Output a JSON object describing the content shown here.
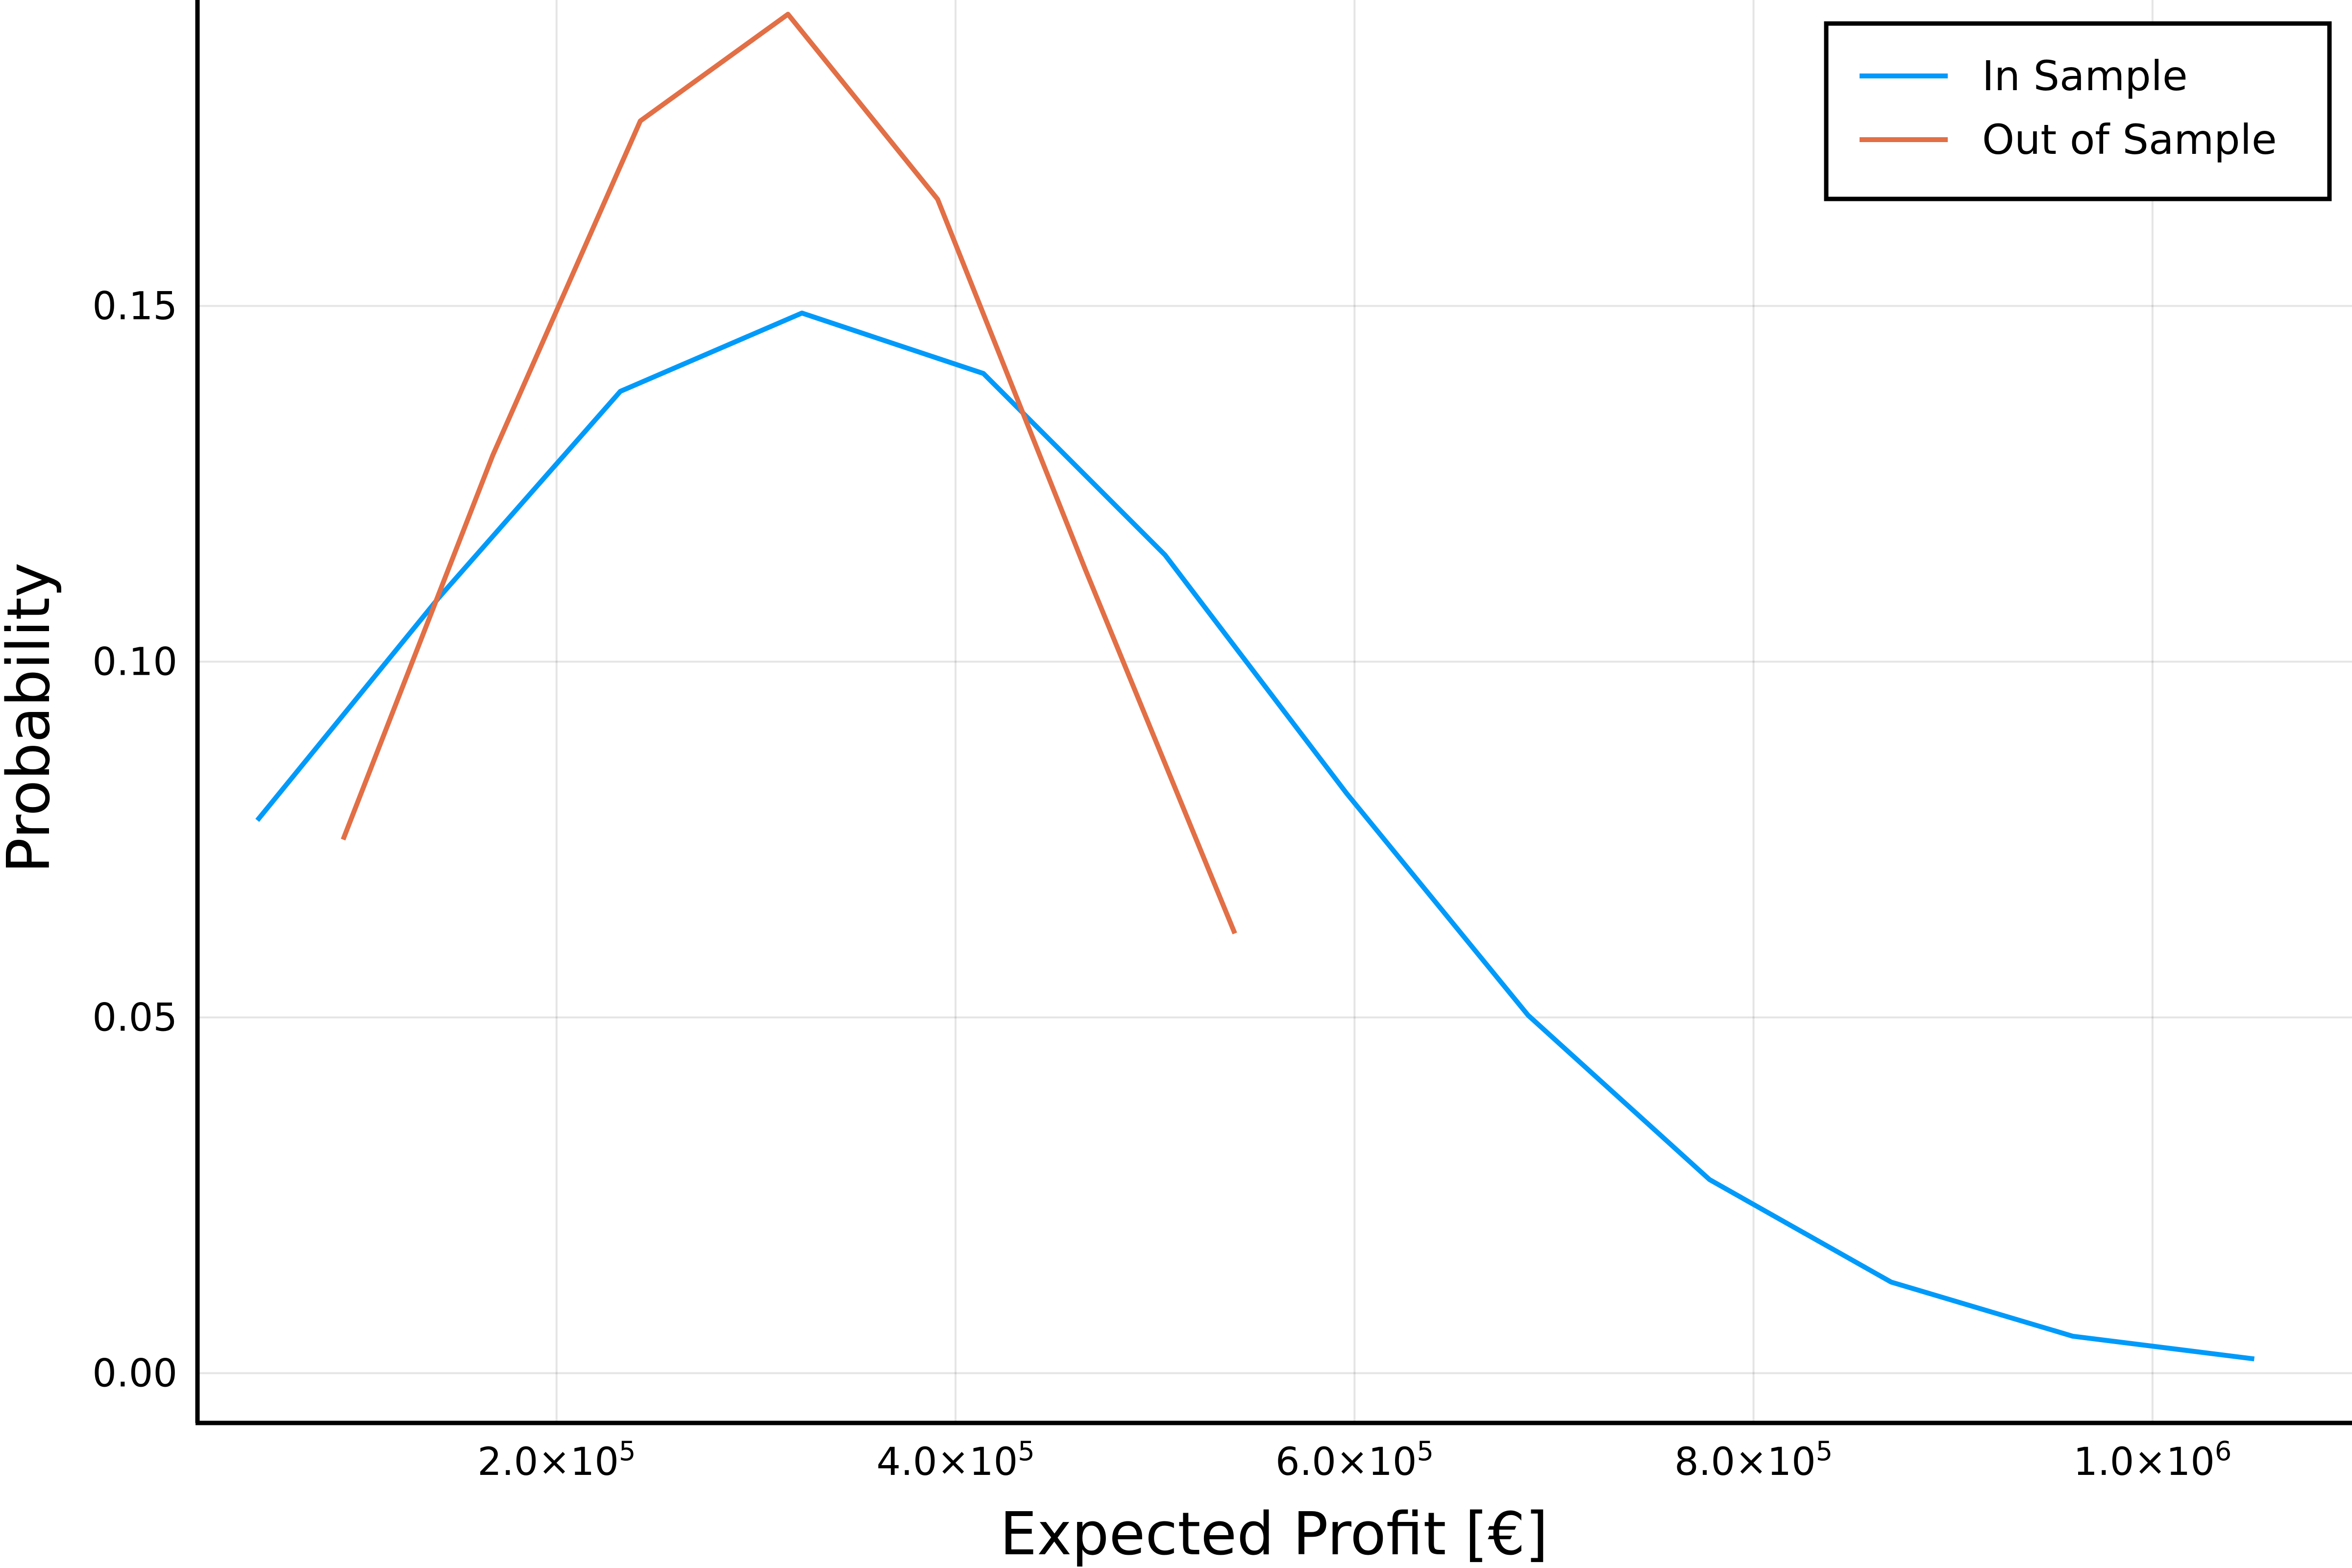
{
  "chart_data": {
    "type": "line",
    "xlabel": "Expected Profit [€]",
    "ylabel": "Probability",
    "xlim": [
      20000,
      1100000
    ],
    "ylim": [
      -0.007,
      0.193
    ],
    "grid": true,
    "legend_position": "top-right",
    "x_ticks": [
      {
        "value": 200000,
        "mantissa": "2.0×10",
        "exponent": "5"
      },
      {
        "value": 400000,
        "mantissa": "4.0×10",
        "exponent": "5"
      },
      {
        "value": 600000,
        "mantissa": "6.0×10",
        "exponent": "5"
      },
      {
        "value": 800000,
        "mantissa": "8.0×10",
        "exponent": "5"
      },
      {
        "value": 1000000,
        "mantissa": "1.0×10",
        "exponent": "6"
      }
    ],
    "y_ticks": [
      {
        "value": 0.0,
        "label": "0.00"
      },
      {
        "value": 0.05,
        "label": "0.05"
      },
      {
        "value": 0.1,
        "label": "0.10"
      },
      {
        "value": 0.15,
        "label": "0.15"
      }
    ],
    "series": [
      {
        "name": "In Sample",
        "color": "#009AFA",
        "x": [
          50000,
          141000,
          232000,
          323000,
          414000,
          505000,
          596000,
          687000,
          778000,
          869000,
          960000,
          1051000
        ],
        "y": [
          0.0777,
          0.109,
          0.138,
          0.149,
          0.1405,
          0.115,
          0.0815,
          0.0503,
          0.0272,
          0.0128,
          0.0052,
          0.002
        ]
      },
      {
        "name": "Out of Sample",
        "color": "#E26F46",
        "x": [
          93000,
          168000,
          242000,
          316000,
          391000,
          465000,
          540000
        ],
        "y": [
          0.075,
          0.129,
          0.176,
          0.191,
          0.165,
          0.113,
          0.0618
        ]
      }
    ]
  }
}
